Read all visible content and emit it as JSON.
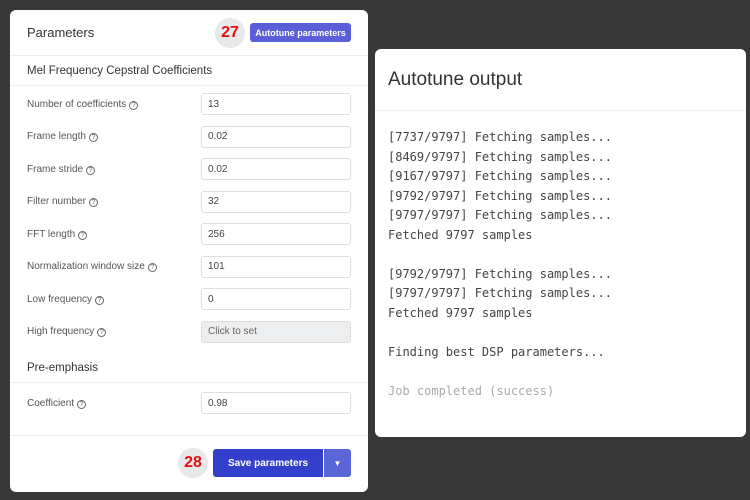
{
  "params": {
    "title": "Parameters",
    "autotune_label": "Autotune parameters",
    "step_autotune": "27",
    "step_save": "28",
    "mfcc_title": "Mel Frequency Cepstral Coefficients",
    "fields": [
      {
        "label": "Number of coefficients",
        "value": "13"
      },
      {
        "label": "Frame length",
        "value": "0.02"
      },
      {
        "label": "Frame stride",
        "value": "0.02"
      },
      {
        "label": "Filter number",
        "value": "32"
      },
      {
        "label": "FFT length",
        "value": "256"
      },
      {
        "label": "Normalization window size",
        "value": "101"
      },
      {
        "label": "Low frequency",
        "value": "0"
      },
      {
        "label": "High frequency",
        "placeholder": "Click to set"
      }
    ],
    "preemphasis_title": "Pre-emphasis",
    "coefficient": {
      "label": "Coefficient",
      "value": "0.98"
    },
    "save_label": "Save parameters"
  },
  "output": {
    "title": "Autotune output",
    "lines": [
      "[7737/9797] Fetching samples...",
      "[8469/9797] Fetching samples...",
      "[9167/9797] Fetching samples...",
      "[9792/9797] Fetching samples...",
      "[9797/9797] Fetching samples...",
      "Fetched 9797 samples",
      "",
      "[9792/9797] Fetching samples...",
      "[9797/9797] Fetching samples...",
      "Fetched 9797 samples",
      "",
      "Finding best DSP parameters...",
      ""
    ],
    "status": "Job completed (success)"
  }
}
